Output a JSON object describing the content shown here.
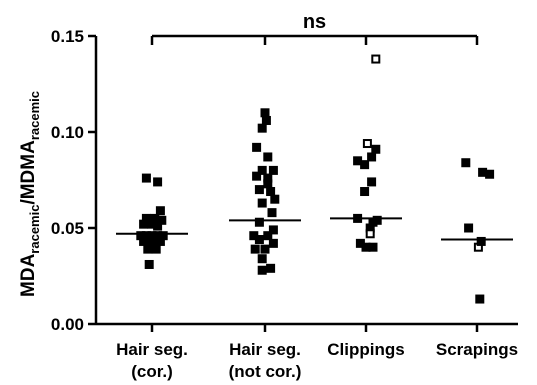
{
  "chart_data": {
    "type": "scatter",
    "title": "",
    "xlabel": "",
    "ylabel": {
      "segments": [
        {
          "text": "MDA",
          "sub": false
        },
        {
          "text": "racemic",
          "sub": true
        },
        {
          "text": "/MDMA",
          "sub": false
        },
        {
          "text": "racemic",
          "sub": true
        }
      ]
    },
    "ylim": [
      0,
      0.15
    ],
    "yticks": [
      "0.00",
      "0.05",
      "0.10",
      "0.15"
    ],
    "categories": [
      {
        "lines": [
          "Hair seg.",
          "(cor.)"
        ]
      },
      {
        "lines": [
          "Hair seg.",
          "(not cor.)"
        ]
      },
      {
        "lines": [
          "Clippings"
        ]
      },
      {
        "lines": [
          "Scrapings"
        ]
      }
    ],
    "groups": [
      {
        "median": 0.047,
        "points": [
          {
            "dx": -0.2,
            "y": 0.076,
            "open": false
          },
          {
            "dx": 0.2,
            "y": 0.074,
            "open": false
          },
          {
            "dx": 0.3,
            "y": 0.059,
            "open": false
          },
          {
            "dx": -0.2,
            "y": 0.055,
            "open": false
          },
          {
            "dx": 0.1,
            "y": 0.055,
            "open": false
          },
          {
            "dx": 0.35,
            "y": 0.054,
            "open": false
          },
          {
            "dx": -0.3,
            "y": 0.052,
            "open": false
          },
          {
            "dx": 0.0,
            "y": 0.052,
            "open": false
          },
          {
            "dx": 0.2,
            "y": 0.051,
            "open": false
          },
          {
            "dx": -0.4,
            "y": 0.046,
            "open": false
          },
          {
            "dx": -0.2,
            "y": 0.046,
            "open": false
          },
          {
            "dx": 0.0,
            "y": 0.046,
            "open": false
          },
          {
            "dx": 0.2,
            "y": 0.046,
            "open": false
          },
          {
            "dx": 0.4,
            "y": 0.046,
            "open": false
          },
          {
            "dx": -0.3,
            "y": 0.043,
            "open": false
          },
          {
            "dx": -0.1,
            "y": 0.043,
            "open": false
          },
          {
            "dx": 0.1,
            "y": 0.043,
            "open": false
          },
          {
            "dx": 0.3,
            "y": 0.043,
            "open": false
          },
          {
            "dx": -0.15,
            "y": 0.039,
            "open": false
          },
          {
            "dx": 0.15,
            "y": 0.039,
            "open": false
          },
          {
            "dx": -0.1,
            "y": 0.031,
            "open": false
          }
        ]
      },
      {
        "median": 0.054,
        "points": [
          {
            "dx": 0.0,
            "y": 0.11,
            "open": false
          },
          {
            "dx": 0.05,
            "y": 0.106,
            "open": false
          },
          {
            "dx": -0.1,
            "y": 0.102,
            "open": false
          },
          {
            "dx": -0.3,
            "y": 0.092,
            "open": false
          },
          {
            "dx": 0.1,
            "y": 0.087,
            "open": false
          },
          {
            "dx": -0.1,
            "y": 0.08,
            "open": false
          },
          {
            "dx": 0.3,
            "y": 0.08,
            "open": false
          },
          {
            "dx": -0.3,
            "y": 0.077,
            "open": false
          },
          {
            "dx": 0.1,
            "y": 0.076,
            "open": false
          },
          {
            "dx": 0.1,
            "y": 0.073,
            "open": false
          },
          {
            "dx": -0.2,
            "y": 0.07,
            "open": false
          },
          {
            "dx": 0.2,
            "y": 0.069,
            "open": false
          },
          {
            "dx": 0.35,
            "y": 0.065,
            "open": false
          },
          {
            "dx": -0.1,
            "y": 0.063,
            "open": false
          },
          {
            "dx": 0.25,
            "y": 0.058,
            "open": false
          },
          {
            "dx": -0.2,
            "y": 0.053,
            "open": false
          },
          {
            "dx": 0.3,
            "y": 0.049,
            "open": false
          },
          {
            "dx": -0.4,
            "y": 0.046,
            "open": false
          },
          {
            "dx": 0.1,
            "y": 0.046,
            "open": false
          },
          {
            "dx": -0.2,
            "y": 0.044,
            "open": false
          },
          {
            "dx": 0.3,
            "y": 0.042,
            "open": false
          },
          {
            "dx": -0.35,
            "y": 0.039,
            "open": false
          },
          {
            "dx": 0.0,
            "y": 0.039,
            "open": false
          },
          {
            "dx": -0.1,
            "y": 0.034,
            "open": false
          },
          {
            "dx": -0.1,
            "y": 0.028,
            "open": false
          },
          {
            "dx": 0.2,
            "y": 0.029,
            "open": false
          }
        ]
      },
      {
        "median": 0.055,
        "points": [
          {
            "dx": 0.35,
            "y": 0.138,
            "open": true
          },
          {
            "dx": 0.05,
            "y": 0.094,
            "open": true
          },
          {
            "dx": 0.35,
            "y": 0.091,
            "open": false
          },
          {
            "dx": -0.3,
            "y": 0.085,
            "open": false
          },
          {
            "dx": 0.2,
            "y": 0.087,
            "open": false
          },
          {
            "dx": -0.05,
            "y": 0.083,
            "open": false
          },
          {
            "dx": 0.2,
            "y": 0.074,
            "open": false
          },
          {
            "dx": -0.05,
            "y": 0.069,
            "open": false
          },
          {
            "dx": -0.3,
            "y": 0.055,
            "open": false
          },
          {
            "dx": 0.4,
            "y": 0.054,
            "open": false
          },
          {
            "dx": 0.25,
            "y": 0.053,
            "open": false
          },
          {
            "dx": 0.15,
            "y": 0.05,
            "open": false
          },
          {
            "dx": 0.15,
            "y": 0.047,
            "open": true
          },
          {
            "dx": -0.2,
            "y": 0.042,
            "open": false
          },
          {
            "dx": 0.0,
            "y": 0.04,
            "open": false
          },
          {
            "dx": 0.25,
            "y": 0.04,
            "open": false
          }
        ]
      },
      {
        "median": 0.044,
        "points": [
          {
            "dx": -0.4,
            "y": 0.084,
            "open": false
          },
          {
            "dx": 0.2,
            "y": 0.079,
            "open": false
          },
          {
            "dx": 0.45,
            "y": 0.078,
            "open": false
          },
          {
            "dx": -0.3,
            "y": 0.05,
            "open": false
          },
          {
            "dx": 0.05,
            "y": 0.04,
            "open": true
          },
          {
            "dx": 0.15,
            "y": 0.043,
            "open": false
          },
          {
            "dx": 0.1,
            "y": 0.013,
            "open": false
          }
        ]
      }
    ],
    "significance": {
      "label": "ns",
      "from": 0,
      "to": 3,
      "y": 0.15,
      "tick_groups": [
        0,
        1,
        2,
        3
      ]
    }
  }
}
